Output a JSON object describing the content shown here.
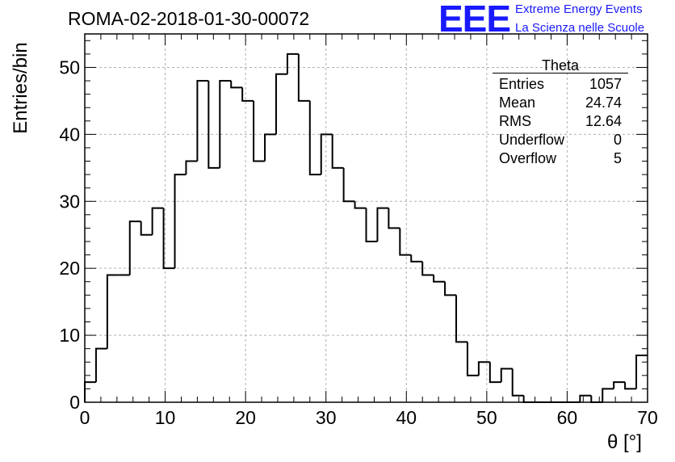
{
  "chart_data": {
    "type": "histogram",
    "title": "ROMA-02-2018-01-30-00072",
    "xlabel": "θ [°]",
    "ylabel": "Entries/bin",
    "xlim": [
      0,
      70
    ],
    "ylim": [
      0,
      55
    ],
    "bin_width": 1.4,
    "x_ticks": [
      0,
      10,
      20,
      30,
      40,
      50,
      60,
      70
    ],
    "y_ticks": [
      0,
      10,
      20,
      30,
      40,
      50
    ],
    "grid": true,
    "bin_edges": [
      0,
      1.4,
      2.8,
      4.2,
      5.6,
      7.0,
      8.4,
      9.8,
      11.2,
      12.6,
      14.0,
      15.4,
      16.8,
      18.2,
      19.6,
      21.0,
      22.4,
      23.8,
      25.2,
      26.6,
      28.0,
      29.4,
      30.8,
      32.2,
      33.6,
      35.0,
      36.4,
      37.8,
      39.2,
      40.6,
      42.0,
      43.4,
      44.8,
      46.2,
      47.6,
      49.0,
      50.4,
      51.8,
      53.2,
      54.6,
      56.0,
      57.4,
      58.8,
      60.2,
      61.6,
      63.0,
      64.4,
      65.8,
      67.2,
      68.6,
      70.0
    ],
    "counts": [
      3,
      8,
      19,
      19,
      27,
      25,
      29,
      20,
      34,
      36,
      48,
      35,
      48,
      47,
      45,
      36,
      40,
      49,
      52,
      45,
      34,
      40,
      35,
      30,
      29,
      24,
      29,
      26,
      22,
      21,
      19,
      18,
      16,
      9,
      4,
      6,
      3,
      5,
      1,
      0,
      0,
      0,
      0,
      0,
      1,
      0,
      2,
      3,
      2,
      7
    ],
    "stats_box": {
      "title": "Theta",
      "rows": [
        {
          "label": "Entries",
          "value": "1057"
        },
        {
          "label": "Mean",
          "value": "24.74"
        },
        {
          "label": "RMS",
          "value": "12.64"
        },
        {
          "label": "Underflow",
          "value": "0"
        },
        {
          "label": "Overflow",
          "value": "5"
        }
      ]
    }
  },
  "logo": {
    "mark": "EEE",
    "line1": "Extreme Energy Events",
    "line2": "La Scienza nelle Scuole"
  },
  "colors": {
    "line": "#000000",
    "grid": "#b0b0b0",
    "logo": "#1a1aff"
  }
}
